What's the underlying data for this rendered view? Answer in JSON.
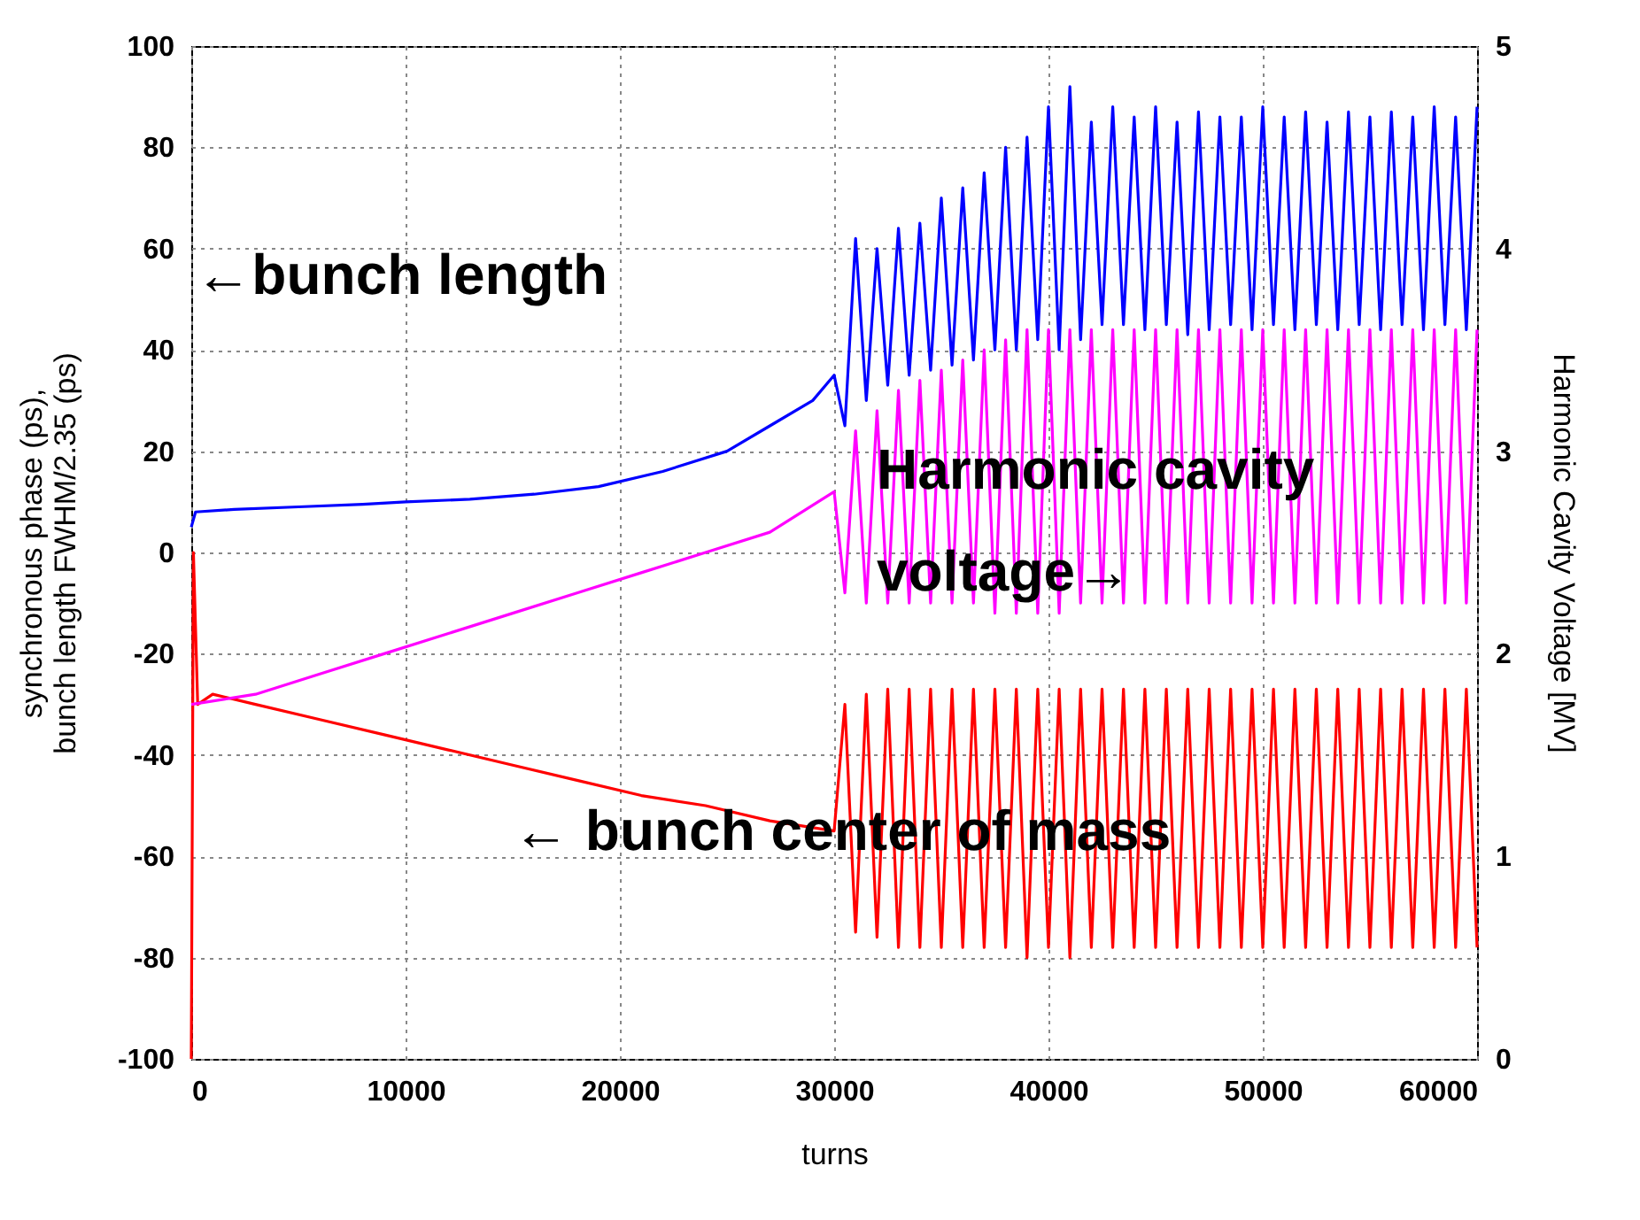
{
  "chart_data": {
    "type": "line",
    "xlabel": "turns",
    "ylabel": "synchronous phase (ps),\nbunch length FWHM/2.35 (ps)",
    "y2label": "Harmonic Cavity Voltage [MV]",
    "xlim": [
      0,
      60000
    ],
    "xticks": [
      0,
      10000,
      20000,
      30000,
      40000,
      50000,
      60000
    ],
    "ylim": [
      -100,
      100
    ],
    "yticks": [
      -100,
      -80,
      -60,
      -40,
      -20,
      0,
      20,
      40,
      60,
      80,
      100
    ],
    "y2lim": [
      0,
      5
    ],
    "y2ticks": [
      0,
      1,
      2,
      3,
      4,
      5
    ],
    "grid": true,
    "line_style": "solid",
    "series": [
      {
        "color": "#0000ff",
        "x": [
          0,
          200,
          2000,
          5000,
          8000,
          10000,
          13000,
          16000,
          19000,
          22000,
          25000,
          27000,
          29000,
          30000,
          30500,
          31000,
          31500,
          32000,
          32500,
          33000,
          33500,
          34000,
          34500,
          35000,
          35500,
          36000,
          36500,
          37000,
          37500,
          38000,
          38500,
          39000,
          39500,
          40000,
          40500,
          41000,
          41500,
          42000,
          42500,
          43000,
          43500,
          44000,
          44500,
          45000,
          45500,
          46000,
          46500,
          47000,
          47500,
          48000,
          48500,
          49000,
          49500,
          50000,
          50500,
          51000,
          51500,
          52000,
          52500,
          53000,
          53500,
          54000,
          54500,
          55000,
          55500,
          56000,
          56500,
          57000,
          57500,
          58000,
          58500,
          59000,
          59500,
          60000
        ],
        "values": [
          5,
          8,
          8.5,
          9,
          9.5,
          10,
          10.5,
          11.5,
          13,
          16,
          20,
          25,
          30,
          35,
          25,
          62,
          30,
          60,
          33,
          64,
          35,
          65,
          36,
          70,
          37,
          72,
          38,
          75,
          40,
          80,
          40,
          82,
          42,
          88,
          40,
          92,
          42,
          85,
          45,
          88,
          45,
          86,
          44,
          88,
          45,
          85,
          43,
          87,
          44,
          86,
          45,
          86,
          44,
          88,
          45,
          86,
          44,
          87,
          45,
          85,
          44,
          87,
          45,
          86,
          44,
          87,
          45,
          86,
          44,
          88,
          45,
          86,
          44,
          88
        ]
      },
      {
        "color": "#ff0000",
        "x": [
          0,
          100,
          300,
          1000,
          3000,
          6000,
          9000,
          12000,
          15000,
          18000,
          21000,
          24000,
          27000,
          30000,
          30500,
          31000,
          31500,
          32000,
          32500,
          33000,
          33500,
          34000,
          34500,
          35000,
          35500,
          36000,
          36500,
          37000,
          37500,
          38000,
          38500,
          39000,
          39500,
          40000,
          40500,
          41000,
          41500,
          42000,
          42500,
          43000,
          43500,
          44000,
          44500,
          45000,
          45500,
          46000,
          46500,
          47000,
          47500,
          48000,
          48500,
          49000,
          49500,
          50000,
          50500,
          51000,
          51500,
          52000,
          52500,
          53000,
          53500,
          54000,
          54500,
          55000,
          55500,
          56000,
          56500,
          57000,
          57500,
          58000,
          58500,
          59000,
          59500,
          60000
        ],
        "values": [
          -100,
          0,
          -30,
          -28,
          -30,
          -33,
          -36,
          -39,
          -42,
          -45,
          -48,
          -50,
          -53,
          -55,
          -30,
          -75,
          -28,
          -76,
          -27,
          -78,
          -27,
          -78,
          -27,
          -78,
          -27,
          -78,
          -27,
          -78,
          -27,
          -78,
          -27,
          -80,
          -27,
          -78,
          -27,
          -80,
          -27,
          -78,
          -27,
          -78,
          -27,
          -78,
          -27,
          -78,
          -27,
          -78,
          -27,
          -78,
          -27,
          -78,
          -27,
          -78,
          -27,
          -78,
          -27,
          -78,
          -27,
          -78,
          -27,
          -78,
          -27,
          -78,
          -27,
          -78,
          -27,
          -78,
          -27,
          -78,
          -27,
          -78,
          -27,
          -78,
          -27,
          -78
        ]
      },
      {
        "color": "#ff00ff",
        "axis": "y2",
        "x": [
          0,
          3000,
          6000,
          9000,
          12000,
          15000,
          18000,
          21000,
          24000,
          27000,
          30000,
          30500,
          31000,
          31500,
          32000,
          32500,
          33000,
          33500,
          34000,
          34500,
          35000,
          35500,
          36000,
          36500,
          37000,
          37500,
          38000,
          38500,
          39000,
          39500,
          40000,
          40500,
          41000,
          41500,
          42000,
          42500,
          43000,
          43500,
          44000,
          44500,
          45000,
          45500,
          46000,
          46500,
          47000,
          47500,
          48000,
          48500,
          49000,
          49500,
          50000,
          50500,
          51000,
          51500,
          52000,
          52500,
          53000,
          53500,
          54000,
          54500,
          55000,
          55500,
          56000,
          56500,
          57000,
          57500,
          58000,
          58500,
          59000,
          59500,
          60000
        ],
        "values": [
          1.75,
          1.8,
          1.9,
          2.0,
          2.1,
          2.2,
          2.3,
          2.4,
          2.5,
          2.6,
          2.8,
          2.3,
          3.1,
          2.25,
          3.2,
          2.25,
          3.3,
          2.25,
          3.35,
          2.25,
          3.4,
          2.25,
          3.45,
          2.25,
          3.5,
          2.2,
          3.55,
          2.2,
          3.6,
          2.2,
          3.6,
          2.2,
          3.6,
          2.25,
          3.6,
          2.25,
          3.6,
          2.25,
          3.6,
          2.25,
          3.6,
          2.25,
          3.6,
          2.25,
          3.6,
          2.25,
          3.6,
          2.25,
          3.6,
          2.25,
          3.6,
          2.25,
          3.6,
          2.25,
          3.6,
          2.25,
          3.6,
          2.25,
          3.6,
          2.25,
          3.6,
          2.25,
          3.6,
          2.25,
          3.6,
          2.25,
          3.6,
          2.25,
          3.6,
          2.25,
          3.6
        ]
      }
    ],
    "annotations": [
      "←bunch length",
      "Harmonic cavity",
      "voltage→",
      "← bunch center of mass"
    ]
  }
}
